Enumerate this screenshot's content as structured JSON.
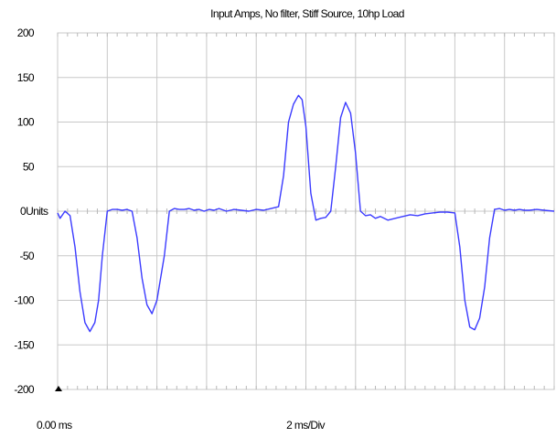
{
  "chart_data": {
    "type": "line",
    "title": "Input Amps, No filter, Stiff Source, 10hp Load",
    "y_unit": "Units",
    "x_start_label": "0.00 ms",
    "x_scale_label": "2 ms/Div",
    "ylim": [
      -200,
      200
    ],
    "xlim": [
      0,
      20
    ],
    "y_ticks": [
      {
        "value": 200,
        "label": "200"
      },
      {
        "value": 150,
        "label": "150"
      },
      {
        "value": 100,
        "label": "100"
      },
      {
        "value": 50,
        "label": "50"
      },
      {
        "value": 0,
        "label": "0"
      },
      {
        "value": -50,
        "label": "-50"
      },
      {
        "value": -100,
        "label": "-100"
      },
      {
        "value": -150,
        "label": "-150"
      },
      {
        "value": -200,
        "label": "-200"
      }
    ],
    "x_divisions": 10,
    "grid": true,
    "line_color": "#3b3bff",
    "series": [
      {
        "x": [
          0,
          0.1,
          0.3,
          0.5,
          0.7,
          0.9,
          1.1,
          1.3,
          1.5,
          1.65,
          1.8,
          2.0,
          2.2,
          2.4,
          2.6,
          2.8,
          3.0,
          3.2,
          3.4,
          3.6,
          3.8,
          4.0,
          4.3,
          4.5,
          4.7,
          4.9,
          5.1,
          5.3,
          5.5,
          5.7,
          5.9,
          6.1,
          6.3,
          6.5,
          6.8,
          7.1,
          7.4,
          7.7,
          8.0,
          8.3,
          8.6,
          8.9,
          9.1,
          9.3,
          9.5,
          9.7,
          9.85,
          10.0,
          10.2,
          10.4,
          10.6,
          10.8,
          11.0,
          11.2,
          11.4,
          11.6,
          11.8,
          12.0,
          12.2,
          12.4,
          12.6,
          12.8,
          13.0,
          13.3,
          13.6,
          13.9,
          14.2,
          14.5,
          14.8,
          15.1,
          15.4,
          15.7,
          16.0,
          16.2,
          16.4,
          16.6,
          16.8,
          17.0,
          17.2,
          17.4,
          17.6,
          17.8,
          18.0,
          18.2,
          18.4,
          18.6,
          18.8,
          19.0,
          19.3,
          19.6,
          20.0
        ],
        "y": [
          -2,
          -8,
          0,
          -5,
          -40,
          -90,
          -125,
          -135,
          -125,
          -100,
          -50,
          0,
          2,
          2,
          1,
          2,
          0,
          -30,
          -75,
          -105,
          -115,
          -100,
          -50,
          0,
          3,
          2,
          2,
          3,
          1,
          2,
          0,
          2,
          1,
          3,
          0,
          2,
          1,
          0,
          2,
          1,
          3,
          5,
          40,
          100,
          120,
          130,
          125,
          95,
          20,
          -10,
          -8,
          -7,
          0,
          50,
          105,
          122,
          110,
          65,
          0,
          -5,
          -4,
          -8,
          -6,
          -10,
          -8,
          -6,
          -4,
          -5,
          -3,
          -2,
          -1,
          -1,
          -2,
          -40,
          -100,
          -130,
          -133,
          -120,
          -85,
          -30,
          2,
          3,
          1,
          2,
          1,
          2,
          1,
          1,
          2,
          1,
          0
        ]
      }
    ]
  }
}
